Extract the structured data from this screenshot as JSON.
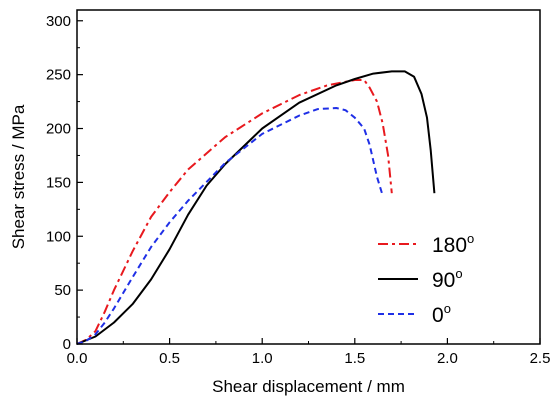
{
  "chart_data": {
    "type": "line",
    "title": "",
    "xlabel": "Shear displacement / mm",
    "ylabel": "Shear stress / MPa",
    "xlim": [
      0.0,
      2.5
    ],
    "ylim": [
      0,
      310
    ],
    "xticks": [
      0.0,
      0.5,
      1.0,
      1.5,
      2.0,
      2.5
    ],
    "xtick_labels": [
      "0.0",
      "0.5",
      "1.0",
      "1.5",
      "2.0",
      "2.5"
    ],
    "yticks": [
      0,
      50,
      100,
      150,
      200,
      250,
      300
    ],
    "ytick_labels": [
      "0",
      "50",
      "100",
      "150",
      "200",
      "250",
      "300"
    ],
    "grid": false,
    "legend_position": "lower-right",
    "series": [
      {
        "name": "180",
        "name_superscript": "o",
        "color": "#e8191e",
        "dash": "dash-dot",
        "x": [
          0.0,
          0.05,
          0.1,
          0.15,
          0.2,
          0.3,
          0.4,
          0.5,
          0.6,
          0.8,
          1.0,
          1.2,
          1.35,
          1.5,
          1.55,
          1.58,
          1.62,
          1.65,
          1.68,
          1.7
        ],
        "y": [
          0,
          4,
          12,
          30,
          50,
          86,
          118,
          141,
          162,
          192,
          214,
          231,
          240,
          245,
          245,
          238,
          225,
          205,
          175,
          140
        ]
      },
      {
        "name": "90",
        "name_superscript": "o",
        "color": "#000000",
        "dash": "solid",
        "x": [
          0.0,
          0.1,
          0.2,
          0.3,
          0.4,
          0.5,
          0.6,
          0.7,
          0.8,
          1.0,
          1.2,
          1.4,
          1.5,
          1.6,
          1.7,
          1.77,
          1.82,
          1.86,
          1.89,
          1.91,
          1.93
        ],
        "y": [
          0,
          7,
          20,
          37,
          60,
          88,
          120,
          147,
          167,
          200,
          224,
          240,
          246,
          251,
          253,
          253,
          248,
          232,
          210,
          180,
          140
        ]
      },
      {
        "name": "0",
        "name_superscript": "o",
        "color": "#1f2fe6",
        "dash": "dash",
        "x": [
          0.0,
          0.05,
          0.1,
          0.15,
          0.2,
          0.3,
          0.4,
          0.5,
          0.6,
          0.8,
          1.0,
          1.2,
          1.3,
          1.4,
          1.45,
          1.5,
          1.55,
          1.58,
          1.6,
          1.62,
          1.65
        ],
        "y": [
          0,
          3,
          9,
          20,
          33,
          62,
          90,
          113,
          133,
          168,
          195,
          212,
          218,
          219,
          217,
          210,
          200,
          185,
          170,
          155,
          138
        ]
      }
    ]
  }
}
